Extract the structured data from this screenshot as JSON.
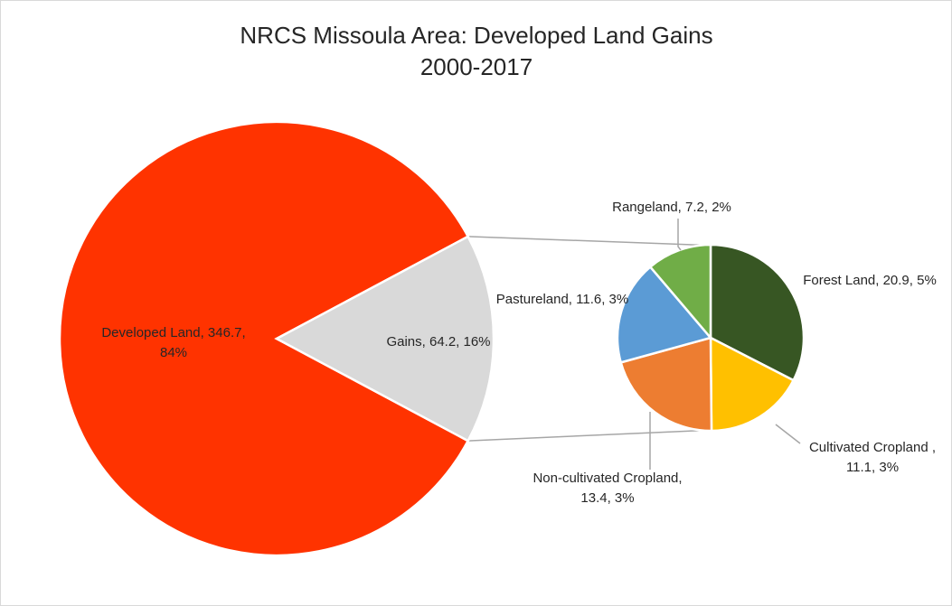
{
  "chart_data": {
    "type": "pie",
    "subtype": "pie-of-pie",
    "title_line1": "NRCS Missoula Area: Developed Land Gains",
    "title_line2": "2000-2017",
    "main": {
      "slices": [
        {
          "label": "Developed Land",
          "value": 346.7,
          "percent": "84%",
          "color": "#ff3300"
        },
        {
          "label": "Gains",
          "value": 64.2,
          "percent": "16%",
          "color": "#d9d9d9"
        }
      ]
    },
    "secondary": {
      "slices": [
        {
          "label": "Forest Land",
          "value": 20.9,
          "percent": "5%",
          "color": "#375623"
        },
        {
          "label": "Cultivated Cropland ",
          "value": 11.1,
          "percent": "3%",
          "color": "#ffc000"
        },
        {
          "label": "Non-cultivated Cropland",
          "value": 13.4,
          "percent": "3%",
          "color": "#ed7d31"
        },
        {
          "label": "Pastureland",
          "value": 11.6,
          "percent": "3%",
          "color": "#5b9bd5"
        },
        {
          "label": "Rangeland",
          "value": 7.2,
          "percent": "2%",
          "color": "#70ad47"
        }
      ]
    },
    "data_labels": {
      "developed_line1": "Developed Land, 346.7,",
      "developed_line2": "84%",
      "gains": "Gains, 64.2, 16%",
      "forest": "Forest Land, 20.9, 5%",
      "cultivated_line1": "Cultivated Cropland ,",
      "cultivated_line2": "11.1, 3%",
      "noncultivated_line1": "Non-cultivated Cropland,",
      "noncultivated_line2": "13.4, 3%",
      "pasture": "Pastureland, 11.6, 3%",
      "range": "Rangeland, 7.2, 2%"
    },
    "legend": "none",
    "connector_color": "#a6a6a6",
    "leader_color": "#a6a6a6"
  }
}
